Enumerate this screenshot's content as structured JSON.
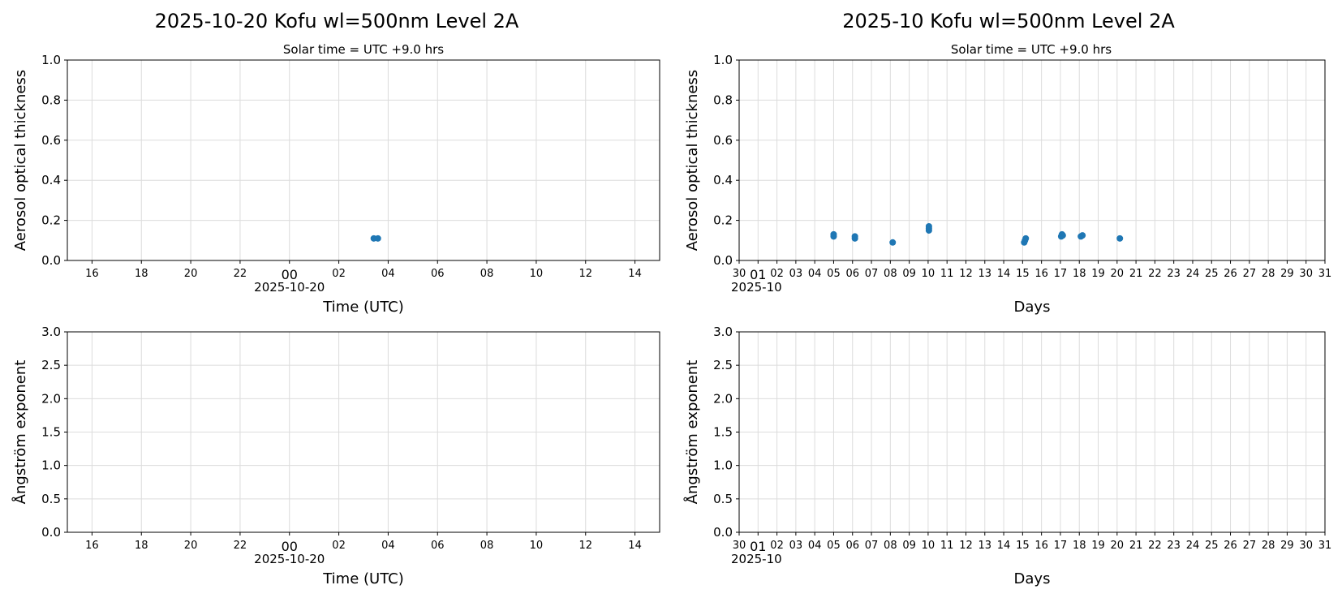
{
  "titles": {
    "left": "2025-10-20  Kofu  wl=500nm  Level 2A",
    "right": "2025-10  Kofu  wl=500nm  Level 2A"
  },
  "subtitles": {
    "left": "Solar time = UTC +9.0 hrs",
    "right": "Solar time = UTC +9.0 hrs"
  },
  "colors": {
    "marker": "#1f77b4",
    "grid": "#dcdcdc",
    "axes": "#000000"
  },
  "chart_data": [
    {
      "id": "aod-daily",
      "type": "scatter",
      "ylabel": "Aerosol optical thickness",
      "xlabel": "Time (UTC)",
      "x_offset_label": "2025-10-20",
      "ylim": [
        0,
        1.0
      ],
      "yticks": [
        "0.0",
        "0.2",
        "0.4",
        "0.6",
        "0.8",
        "1.0"
      ],
      "xlim": [
        "2025-10-19T15:00",
        "2025-10-20T15:00"
      ],
      "xticks": [
        "16",
        "18",
        "20",
        "22",
        "00",
        "02",
        "04",
        "06",
        "08",
        "10",
        "12",
        "14"
      ],
      "grid": true,
      "series": [
        {
          "points": [
            {
              "x": "2025-10-20T03:25",
              "y": 0.11
            },
            {
              "x": "2025-10-20T03:35",
              "y": 0.11
            }
          ]
        }
      ]
    },
    {
      "id": "aod-monthly",
      "type": "scatter",
      "ylabel": "Aerosol optical thickness",
      "xlabel": "Days",
      "x_offset_label": "2025-10",
      "ylim": [
        0,
        1.0
      ],
      "yticks": [
        "0.0",
        "0.2",
        "0.4",
        "0.6",
        "0.8",
        "1.0"
      ],
      "xlim": [
        "2025-09-30",
        "2025-10-31"
      ],
      "xticks": [
        "30",
        "01",
        "02",
        "03",
        "04",
        "05",
        "06",
        "07",
        "08",
        "09",
        "10",
        "11",
        "12",
        "13",
        "14",
        "15",
        "16",
        "17",
        "18",
        "19",
        "20",
        "21",
        "22",
        "23",
        "24",
        "25",
        "26",
        "27",
        "28",
        "29",
        "30",
        "31"
      ],
      "grid": true,
      "series": [
        {
          "points": [
            {
              "x": "2025-10-05T00:00",
              "y": 0.12
            },
            {
              "x": "2025-10-05T00:00",
              "y": 0.13
            },
            {
              "x": "2025-10-06T03:00",
              "y": 0.11
            },
            {
              "x": "2025-10-06T03:00",
              "y": 0.12
            },
            {
              "x": "2025-10-08T03:00",
              "y": 0.09
            },
            {
              "x": "2025-10-10T01:00",
              "y": 0.15
            },
            {
              "x": "2025-10-10T01:00",
              "y": 0.16
            },
            {
              "x": "2025-10-10T01:00",
              "y": 0.17
            },
            {
              "x": "2025-10-15T02:00",
              "y": 0.09
            },
            {
              "x": "2025-10-15T03:00",
              "y": 0.1
            },
            {
              "x": "2025-10-15T04:00",
              "y": 0.11
            },
            {
              "x": "2025-10-17T01:00",
              "y": 0.12
            },
            {
              "x": "2025-10-17T02:00",
              "y": 0.13
            },
            {
              "x": "2025-10-17T03:00",
              "y": 0.125
            },
            {
              "x": "2025-10-18T02:00",
              "y": 0.12
            },
            {
              "x": "2025-10-18T04:00",
              "y": 0.125
            },
            {
              "x": "2025-10-20T03:30",
              "y": 0.11
            }
          ]
        }
      ]
    },
    {
      "id": "angstrom-daily",
      "type": "scatter",
      "ylabel": "Ångström exponent",
      "xlabel": "Time (UTC)",
      "x_offset_label": "2025-10-20",
      "ylim": [
        0,
        3.0
      ],
      "yticks": [
        "0.0",
        "0.5",
        "1.0",
        "1.5",
        "2.0",
        "2.5",
        "3.0"
      ],
      "xlim": [
        "2025-10-19T15:00",
        "2025-10-20T15:00"
      ],
      "xticks": [
        "16",
        "18",
        "20",
        "22",
        "00",
        "02",
        "04",
        "06",
        "08",
        "10",
        "12",
        "14"
      ],
      "grid": true,
      "series": [
        {
          "points": []
        }
      ]
    },
    {
      "id": "angstrom-monthly",
      "type": "scatter",
      "ylabel": "Ångström exponent",
      "xlabel": "Days",
      "x_offset_label": "2025-10",
      "ylim": [
        0,
        3.0
      ],
      "yticks": [
        "0.0",
        "0.5",
        "1.0",
        "1.5",
        "2.0",
        "2.5",
        "3.0"
      ],
      "xlim": [
        "2025-09-30",
        "2025-10-31"
      ],
      "xticks": [
        "30",
        "01",
        "02",
        "03",
        "04",
        "05",
        "06",
        "07",
        "08",
        "09",
        "10",
        "11",
        "12",
        "13",
        "14",
        "15",
        "16",
        "17",
        "18",
        "19",
        "20",
        "21",
        "22",
        "23",
        "24",
        "25",
        "26",
        "27",
        "28",
        "29",
        "30",
        "31"
      ],
      "grid": true,
      "series": [
        {
          "points": []
        }
      ]
    }
  ]
}
